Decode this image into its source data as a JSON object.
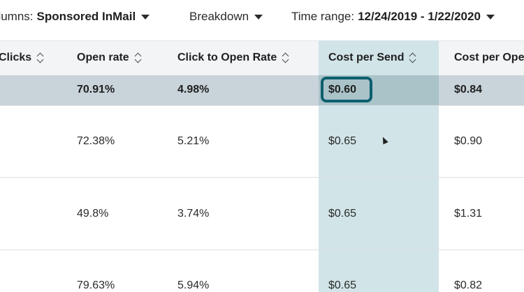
{
  "toolbar": {
    "columns_label": "olumns:",
    "columns_value": "Sponsored InMail",
    "breakdown_label": "Breakdown",
    "timerange_label": "Time range:",
    "timerange_value": "12/24/2019 - 1/22/2020"
  },
  "table": {
    "headers": [
      "Clicks",
      "Open rate",
      "Click to Open Rate",
      "Cost per Send",
      "Cost per Ope"
    ],
    "summary": [
      "",
      "70.91%",
      "4.98%",
      "$0.60",
      "$0.84"
    ],
    "rows": [
      [
        "",
        "72.38%",
        "5.21%",
        "$0.65",
        "$0.90"
      ],
      [
        "",
        "49.8%",
        "3.74%",
        "$0.65",
        "$1.31"
      ],
      [
        "",
        "79.63%",
        "5.94%",
        "$0.65",
        "$0.82"
      ]
    ]
  },
  "colors": {
    "highlight_column": "#d1e4e8",
    "selection_border": "#0d5f6e",
    "summary_row": "#c9d3da"
  }
}
